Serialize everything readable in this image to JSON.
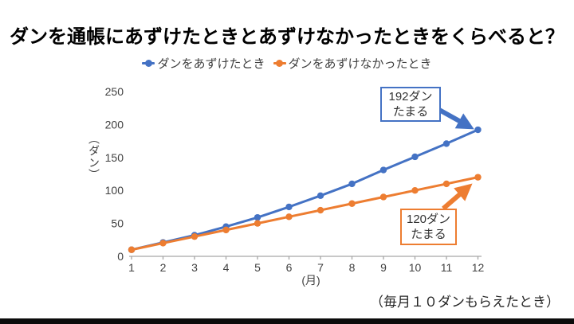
{
  "title": "ダンを通帳にあずけたときとあずけなかったときをくらべると？",
  "footnote": "（毎月１０ダンもらえたとき）",
  "colors": {
    "deposited_blue": "#4472C4",
    "not_deposited_orange": "#ED7D31",
    "axis_line": "#A6A6A6",
    "tick_text": "#404040",
    "bottom_bar": "#0b0b0b"
  },
  "chart_data": {
    "type": "line",
    "x": [
      1,
      2,
      3,
      4,
      5,
      6,
      7,
      8,
      9,
      10,
      11,
      12
    ],
    "xlabel": "(月)",
    "ylabel": "（ダン）",
    "ylim": [
      0,
      250
    ],
    "yticks": [
      0,
      50,
      100,
      150,
      200,
      250
    ],
    "grid": false,
    "legend_position": "top-center",
    "series": [
      {
        "name": "ダンをあずけたとき",
        "color": "#4472C4",
        "values": [
          10,
          21,
          32,
          45,
          59,
          75,
          92,
          110,
          131,
          151,
          171,
          192
        ]
      },
      {
        "name": "ダンをあずけなかったとき",
        "color": "#ED7D31",
        "values": [
          10,
          20,
          30,
          40,
          50,
          60,
          70,
          80,
          90,
          100,
          110,
          120
        ]
      }
    ],
    "annotations": [
      {
        "target": "ダンをあずけたとき",
        "line1": "192ダン",
        "line2": "たまる"
      },
      {
        "target": "ダンをあずけなかったとき",
        "line1": "120ダン",
        "line2": "たまる"
      }
    ]
  }
}
